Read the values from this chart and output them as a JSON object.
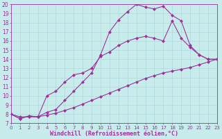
{
  "background_color": "#c8ecec",
  "grid_color": "#afd8d8",
  "line_color": "#993399",
  "marker": "D",
  "markersize": 2,
  "linewidth": 0.8,
  "xlabel": "Windchill (Refroidissement éolien,°C)",
  "xlabel_fontsize": 6,
  "xlim": [
    0,
    23
  ],
  "ylim": [
    7,
    20
  ],
  "xtick_fontsize": 5,
  "ytick_fontsize": 5.5,
  "series": [
    {
      "x": [
        0,
        1,
        2,
        3,
        4,
        5,
        6,
        7,
        8,
        9,
        10,
        11,
        12,
        13,
        14,
        15,
        16,
        17,
        18,
        19,
        20,
        21,
        22,
        23
      ],
      "y": [
        8.0,
        7.5,
        7.8,
        7.7,
        8.2,
        8.5,
        9.5,
        10.5,
        11.5,
        12.5,
        14.5,
        17.0,
        18.3,
        19.2,
        20.0,
        19.7,
        19.5,
        19.8,
        18.8,
        18.2,
        15.5,
        14.5,
        14.0,
        14.0
      ]
    },
    {
      "x": [
        0,
        1,
        2,
        3,
        4,
        5,
        6,
        7,
        8,
        9,
        10,
        11,
        12,
        13,
        14,
        15,
        16,
        17,
        18,
        19,
        20,
        21,
        22,
        23
      ],
      "y": [
        8.0,
        7.5,
        7.8,
        7.7,
        10.0,
        10.5,
        11.5,
        12.3,
        12.5,
        13.0,
        14.3,
        14.8,
        15.5,
        16.0,
        16.3,
        16.5,
        16.3,
        16.0,
        18.2,
        16.3,
        15.3,
        14.5,
        14.0,
        14.0
      ]
    },
    {
      "x": [
        0,
        1,
        2,
        3,
        4,
        5,
        6,
        7,
        8,
        9,
        10,
        11,
        12,
        13,
        14,
        15,
        16,
        17,
        18,
        19,
        20,
        21,
        22,
        23
      ],
      "y": [
        8.0,
        7.7,
        7.7,
        7.7,
        7.9,
        8.1,
        8.4,
        8.7,
        9.1,
        9.5,
        9.9,
        10.3,
        10.7,
        11.1,
        11.5,
        11.9,
        12.2,
        12.5,
        12.7,
        12.9,
        13.1,
        13.4,
        13.7,
        14.0
      ]
    }
  ]
}
